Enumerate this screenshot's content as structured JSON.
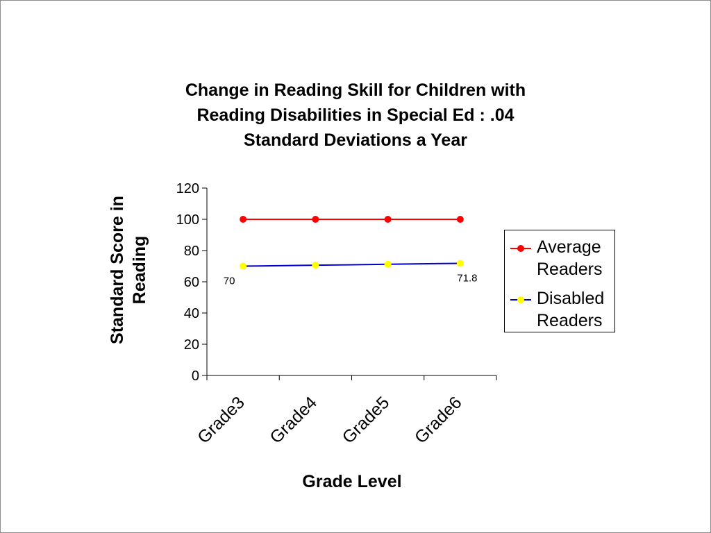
{
  "chart_data": {
    "type": "line",
    "title_lines": [
      "Change in Reading Skill for Children with",
      "Reading Disabilities in Special Ed : .04",
      "Standard Deviations a Year"
    ],
    "xlabel": "Grade Level",
    "ylabel_lines": [
      "Standard Score in",
      "Reading"
    ],
    "categories": [
      "Grade3",
      "Grade4",
      "Grade5",
      "Grade6"
    ],
    "ylim": [
      0,
      120
    ],
    "yticks": [
      0,
      20,
      40,
      60,
      80,
      100,
      120
    ],
    "grid": false,
    "legend_position": "right",
    "series": [
      {
        "name": "Average Readers",
        "name_lines": [
          "Average",
          "Readers"
        ],
        "values": [
          100,
          100,
          100,
          100
        ],
        "color": "#ff0000",
        "marker_color": "#ff0000"
      },
      {
        "name": "Disabled Readers",
        "name_lines": [
          "Disabled",
          "Readers"
        ],
        "values": [
          70,
          70.6,
          71.2,
          71.8
        ],
        "color": "#0000cc",
        "marker_color": "#ffff00",
        "data_labels": [
          {
            "index": 0,
            "text": "70"
          },
          {
            "index": 3,
            "text": "71.8"
          }
        ]
      }
    ]
  }
}
